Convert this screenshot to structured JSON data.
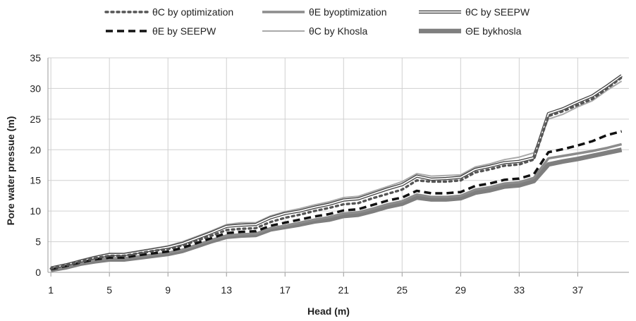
{
  "chart_data": {
    "type": "line",
    "title": "",
    "xlabel": "Head (m)",
    "ylabel": "Pore water pressue (m)",
    "x": [
      1,
      2,
      3,
      4,
      5,
      6,
      7,
      8,
      9,
      10,
      11,
      12,
      13,
      14,
      15,
      16,
      17,
      18,
      19,
      20,
      21,
      22,
      23,
      24,
      25,
      26,
      27,
      28,
      29,
      30,
      31,
      32,
      33,
      34,
      35,
      36,
      37,
      38,
      39,
      40
    ],
    "xticks": [
      1,
      5,
      9,
      13,
      17,
      21,
      25,
      29,
      33,
      37
    ],
    "xtick_labels": [
      "1",
      "5",
      "9",
      "13",
      "17",
      "21",
      "25",
      "29",
      "33",
      "37"
    ],
    "xlim": [
      0.8,
      40.5
    ],
    "ylim": [
      0,
      35
    ],
    "yticks": [
      0,
      5,
      10,
      15,
      20,
      25,
      30,
      35
    ],
    "ytick_labels": [
      "0",
      "5",
      "10",
      "15",
      "20",
      "25",
      "30",
      "35"
    ],
    "grid": true,
    "legend_position": "top",
    "series": [
      {
        "name": "θC by optimization",
        "style": "dotted",
        "color": "#555555",
        "values": [
          0.6,
          1.1,
          1.7,
          2.3,
          2.7,
          2.7,
          3.1,
          3.5,
          3.8,
          4.4,
          5.2,
          6.0,
          6.9,
          7.1,
          7.2,
          8.2,
          8.9,
          9.4,
          10.0,
          10.5,
          11.1,
          11.3,
          12.1,
          12.8,
          13.5,
          15.0,
          14.8,
          14.8,
          15.0,
          16.3,
          16.8,
          17.4,
          17.6,
          18.4,
          25.5,
          26.3,
          27.3,
          28.3,
          30.0,
          31.8
        ]
      },
      {
        "name": "θE byoptimization",
        "style": "solid-medium",
        "color": "#8c8c8c",
        "values": [
          0.5,
          0.9,
          1.5,
          2.0,
          2.3,
          2.3,
          2.6,
          2.9,
          3.2,
          3.7,
          4.5,
          5.3,
          6.0,
          6.2,
          6.3,
          7.2,
          7.6,
          8.1,
          8.6,
          9.0,
          9.6,
          9.8,
          10.4,
          11.1,
          11.6,
          12.7,
          12.3,
          12.3,
          12.5,
          13.5,
          13.9,
          14.5,
          14.7,
          15.4,
          18.6,
          19.0,
          19.4,
          19.8,
          20.3,
          20.9
        ]
      },
      {
        "name": "θC by SEEPW",
        "style": "double",
        "color": "#444444",
        "values": [
          0.7,
          1.2,
          1.8,
          2.4,
          2.9,
          2.9,
          3.3,
          3.7,
          4.1,
          4.7,
          5.6,
          6.5,
          7.5,
          7.7,
          7.8,
          8.9,
          9.6,
          10.0,
          10.6,
          11.1,
          11.8,
          12.0,
          12.8,
          13.6,
          14.3,
          15.7,
          15.2,
          15.3,
          15.5,
          16.8,
          17.3,
          17.9,
          18.1,
          18.7,
          25.9,
          26.7,
          27.8,
          28.8,
          30.4,
          32.1
        ]
      },
      {
        "name": "θE by SEEPW",
        "style": "dashed",
        "color": "#111111",
        "values": [
          0.5,
          1.0,
          1.6,
          2.1,
          2.4,
          2.4,
          2.8,
          3.1,
          3.4,
          4.0,
          4.8,
          5.6,
          6.4,
          6.6,
          6.7,
          7.6,
          8.1,
          8.6,
          9.1,
          9.5,
          10.1,
          10.3,
          11.0,
          11.7,
          12.2,
          13.3,
          12.9,
          12.9,
          13.1,
          14.1,
          14.5,
          15.1,
          15.3,
          16.0,
          19.6,
          20.1,
          20.7,
          21.4,
          22.4,
          23.0
        ]
      },
      {
        "name": "θC by Khosla",
        "style": "solid-thin",
        "color": "#a9a9a9",
        "values": [
          0.8,
          1.3,
          2.0,
          2.6,
          3.1,
          3.1,
          3.5,
          3.9,
          4.3,
          5.0,
          5.9,
          6.8,
          7.8,
          8.1,
          8.1,
          9.2,
          9.9,
          10.4,
          11.0,
          11.5,
          12.2,
          12.4,
          13.2,
          14.0,
          14.8,
          16.1,
          15.7,
          15.8,
          15.9,
          17.2,
          17.7,
          18.4,
          18.8,
          19.5,
          25.0,
          25.8,
          27.0,
          28.0,
          29.7,
          31.2
        ]
      },
      {
        "name": "ΘE bykhosla",
        "style": "solid-thick",
        "color": "#7f7f7f",
        "values": [
          0.4,
          0.8,
          1.4,
          1.8,
          2.1,
          2.1,
          2.4,
          2.7,
          3.0,
          3.5,
          4.3,
          5.1,
          5.8,
          6.0,
          6.1,
          7.0,
          7.4,
          7.8,
          8.3,
          8.6,
          9.2,
          9.4,
          10.0,
          10.7,
          11.2,
          12.2,
          11.9,
          11.9,
          12.1,
          13.0,
          13.4,
          14.0,
          14.2,
          14.9,
          17.6,
          18.1,
          18.5,
          19.0,
          19.5,
          20.0
        ]
      }
    ]
  }
}
